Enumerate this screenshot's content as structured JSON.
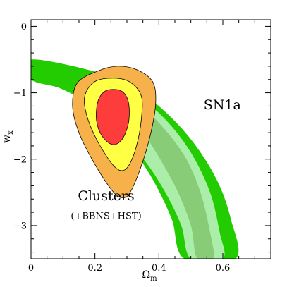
{
  "chart_data": {
    "type": "contour",
    "xlabel": "Ω",
    "xlabel_sub": "m",
    "ylabel": "w",
    "ylabel_sub": "x",
    "xlim": [
      0,
      0.75
    ],
    "ylim": [
      -3.5,
      0.1
    ],
    "x_ticks": [
      {
        "value": 0,
        "label": "0"
      },
      {
        "value": 0.2,
        "label": "0.2"
      },
      {
        "value": 0.4,
        "label": "0.4"
      },
      {
        "value": 0.6,
        "label": "0.6"
      }
    ],
    "y_ticks": [
      {
        "value": 0,
        "label": "0"
      },
      {
        "value": -1,
        "label": "−1"
      },
      {
        "value": -2,
        "label": "−2"
      },
      {
        "value": -3,
        "label": "−3"
      }
    ],
    "annotations": [
      {
        "id": "sn1a",
        "text": "SN1a",
        "x": 0.54,
        "y": -1.25
      },
      {
        "id": "clusters",
        "text": "Clusters",
        "x": 0.235,
        "y": -2.62
      },
      {
        "id": "clusters_sub",
        "text": "(+BBNS+HST)",
        "x": 0.235,
        "y": -2.9
      }
    ],
    "colors": {
      "sn_outer": "#22cc00",
      "sn_mid": "#aaeeaa",
      "sn_inner": "#88cc77",
      "cl_outer": "#f7b14a",
      "cl_mid": "#ffff44",
      "cl_inner": "#ff3c3c"
    },
    "series": [
      {
        "id": "sn1a_outer",
        "fill": "sn_outer",
        "points": [
          [
            0.0,
            -0.5
          ],
          [
            0.2,
            -0.68
          ],
          [
            0.3,
            -0.87
          ],
          [
            0.4,
            -1.2
          ],
          [
            0.5,
            -1.7
          ],
          [
            0.58,
            -2.3
          ],
          [
            0.625,
            -2.9
          ],
          [
            0.64,
            -3.5
          ],
          [
            0.48,
            -3.5
          ],
          [
            0.44,
            -2.9
          ],
          [
            0.38,
            -2.3
          ],
          [
            0.31,
            -1.8
          ],
          [
            0.22,
            -1.3
          ],
          [
            0.1,
            -0.95
          ],
          [
            0.0,
            -0.8
          ]
        ]
      },
      {
        "id": "sn1a_mid",
        "fill": "sn_mid",
        "points": [
          [
            0.22,
            -0.85
          ],
          [
            0.33,
            -1.05
          ],
          [
            0.42,
            -1.4
          ],
          [
            0.5,
            -1.9
          ],
          [
            0.56,
            -2.5
          ],
          [
            0.59,
            -3.1
          ],
          [
            0.6,
            -3.5
          ],
          [
            0.5,
            -3.5
          ],
          [
            0.47,
            -3.0
          ],
          [
            0.42,
            -2.5
          ],
          [
            0.36,
            -2.05
          ],
          [
            0.28,
            -1.6
          ],
          [
            0.2,
            -1.2
          ]
        ]
      },
      {
        "id": "sn1a_inner",
        "fill": "sn_inner",
        "points": [
          [
            0.32,
            -1.1
          ],
          [
            0.4,
            -1.45
          ],
          [
            0.48,
            -1.95
          ],
          [
            0.53,
            -2.5
          ],
          [
            0.56,
            -3.1
          ],
          [
            0.57,
            -3.5
          ],
          [
            0.52,
            -3.5
          ],
          [
            0.5,
            -3.0
          ],
          [
            0.46,
            -2.5
          ],
          [
            0.41,
            -2.05
          ],
          [
            0.36,
            -1.65
          ],
          [
            0.32,
            -1.3
          ]
        ]
      },
      {
        "id": "clusters_outer",
        "fill": "cl_outer",
        "points": [
          [
            0.21,
            -0.67
          ],
          [
            0.27,
            -0.6
          ],
          [
            0.33,
            -0.65
          ],
          [
            0.38,
            -0.83
          ],
          [
            0.39,
            -1.15
          ],
          [
            0.375,
            -1.6
          ],
          [
            0.345,
            -2.1
          ],
          [
            0.31,
            -2.5
          ],
          [
            0.285,
            -2.58
          ],
          [
            0.255,
            -2.48
          ],
          [
            0.2,
            -2.08
          ],
          [
            0.15,
            -1.6
          ],
          [
            0.13,
            -1.2
          ],
          [
            0.145,
            -0.85
          ]
        ]
      },
      {
        "id": "clusters_mid",
        "fill": "cl_mid",
        "points": [
          [
            0.2,
            -0.83
          ],
          [
            0.26,
            -0.78
          ],
          [
            0.31,
            -0.84
          ],
          [
            0.345,
            -1.05
          ],
          [
            0.345,
            -1.4
          ],
          [
            0.33,
            -1.8
          ],
          [
            0.305,
            -2.1
          ],
          [
            0.28,
            -2.17
          ],
          [
            0.25,
            -2.05
          ],
          [
            0.205,
            -1.7
          ],
          [
            0.175,
            -1.35
          ],
          [
            0.168,
            -1.05
          ]
        ]
      },
      {
        "id": "clusters_inner",
        "fill": "cl_inner",
        "points": [
          [
            0.25,
            -0.95
          ],
          [
            0.285,
            -0.98
          ],
          [
            0.305,
            -1.15
          ],
          [
            0.305,
            -1.45
          ],
          [
            0.285,
            -1.7
          ],
          [
            0.255,
            -1.78
          ],
          [
            0.222,
            -1.65
          ],
          [
            0.205,
            -1.42
          ],
          [
            0.208,
            -1.15
          ],
          [
            0.225,
            -1.0
          ]
        ]
      }
    ]
  }
}
